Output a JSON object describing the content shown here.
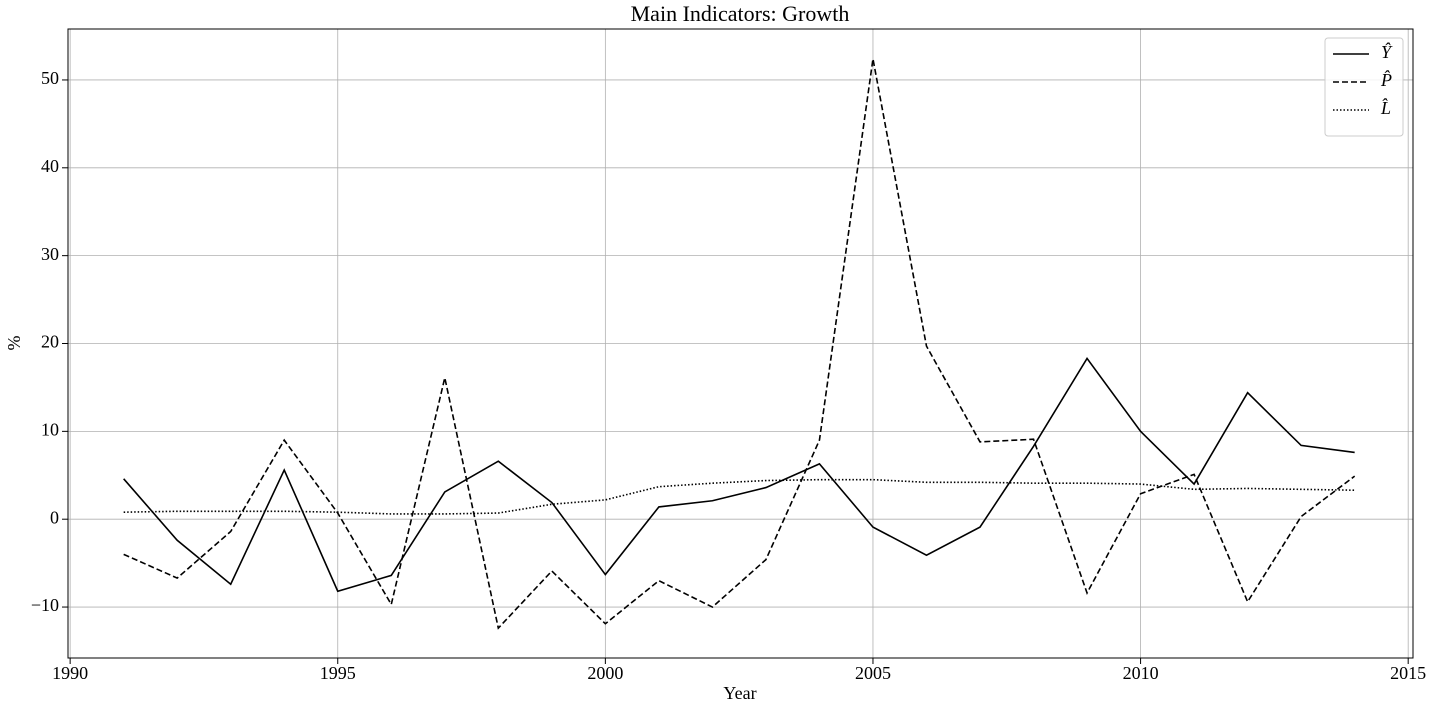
{
  "chart_data": {
    "type": "line",
    "title": "Main Indicators: Growth",
    "xlabel": "Year",
    "ylabel": "%",
    "x": [
      1991,
      1992,
      1993,
      1994,
      1995,
      1996,
      1997,
      1998,
      1999,
      2000,
      2001,
      2002,
      2003,
      2004,
      2005,
      2006,
      2007,
      2008,
      2009,
      2010,
      2011,
      2012,
      2013,
      2014
    ],
    "series": [
      {
        "name": "Ŷ",
        "color": "#000000",
        "linestyle": "solid",
        "values": [
          4.6,
          -2.4,
          -7.4,
          5.6,
          -8.2,
          -6.4,
          3.1,
          6.6,
          1.9,
          -6.3,
          1.4,
          2.1,
          3.6,
          6.3,
          -0.9,
          -4.1,
          -0.9,
          8.3,
          18.3,
          10.0,
          4.0,
          14.4,
          8.4,
          7.6
        ]
      },
      {
        "name": "P̂",
        "color": "#000000",
        "linestyle": "dashed",
        "values": [
          -4.0,
          -6.7,
          -1.4,
          9.0,
          0.7,
          -9.7,
          16.1,
          -12.4,
          -5.9,
          -11.9,
          -7.0,
          -10.0,
          -4.6,
          9.0,
          52.4,
          19.7,
          8.8,
          9.1,
          -8.4,
          2.9,
          5.1,
          -9.4,
          0.3,
          4.9
        ]
      },
      {
        "name": "L̂",
        "color": "#000000",
        "linestyle": "dotted",
        "values": [
          0.8,
          0.9,
          0.9,
          0.9,
          0.8,
          0.6,
          0.6,
          0.7,
          1.7,
          2.2,
          3.7,
          4.1,
          4.4,
          4.5,
          4.5,
          4.2,
          4.2,
          4.1,
          4.1,
          4.0,
          3.4,
          3.5,
          3.4,
          3.3
        ]
      }
    ],
    "xlim": [
      1989.96,
      2015.09
    ],
    "xticks": [
      1990,
      1995,
      2000,
      2005,
      2010,
      2015
    ],
    "ylim": [
      -15.8,
      55.8
    ],
    "yticks": [
      {
        "value": -10,
        "label": "−10"
      },
      0,
      10,
      20,
      30,
      40,
      50
    ],
    "grid": true,
    "legend": "upper right"
  }
}
